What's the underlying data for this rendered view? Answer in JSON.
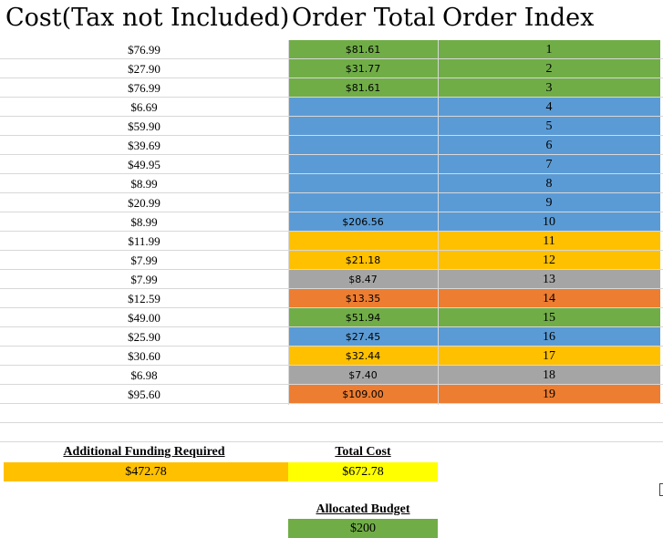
{
  "headers": {
    "cost": "Cost(Tax not Included)",
    "total": "Order Total",
    "index": "Order Index"
  },
  "colors": {
    "green": "#70ad47",
    "blue": "#5b9bd5",
    "gold": "#ffc000",
    "gray": "#a5a5a5",
    "orange": "#ed7d31",
    "yellow": "#ffff00"
  },
  "rows": [
    {
      "cost": "$76.99",
      "total": "$81.61",
      "index": "1",
      "color": "#70ad47"
    },
    {
      "cost": "$27.90",
      "total": "$31.77",
      "index": "2",
      "color": "#70ad47"
    },
    {
      "cost": "$76.99",
      "total": "$81.61",
      "index": "3",
      "color": "#70ad47"
    },
    {
      "cost": "$6.69",
      "total": "",
      "index": "4",
      "color": "#5b9bd5"
    },
    {
      "cost": "$59.90",
      "total": "",
      "index": "5",
      "color": "#5b9bd5"
    },
    {
      "cost": "$39.69",
      "total": "",
      "index": "6",
      "color": "#5b9bd5"
    },
    {
      "cost": "$49.95",
      "total": "",
      "index": "7",
      "color": "#5b9bd5"
    },
    {
      "cost": "$8.99",
      "total": "",
      "index": "8",
      "color": "#5b9bd5"
    },
    {
      "cost": "$20.99",
      "total": "",
      "index": "9",
      "color": "#5b9bd5"
    },
    {
      "cost": "$8.99",
      "total": "$206.56",
      "index": "10",
      "color": "#5b9bd5"
    },
    {
      "cost": "$11.99",
      "total": "",
      "index": "11",
      "color": "#ffc000"
    },
    {
      "cost": "$7.99",
      "total": "$21.18",
      "index": "12",
      "color": "#ffc000"
    },
    {
      "cost": "$7.99",
      "total": "$8.47",
      "index": "13",
      "color": "#a5a5a5"
    },
    {
      "cost": "$12.59",
      "total": "$13.35",
      "index": "14",
      "color": "#ed7d31"
    },
    {
      "cost": "$49.00",
      "total": "$51.94",
      "index": "15",
      "color": "#70ad47"
    },
    {
      "cost": "$25.90",
      "total": "$27.45",
      "index": "16",
      "color": "#5b9bd5"
    },
    {
      "cost": "$30.60",
      "total": "$32.44",
      "index": "17",
      "color": "#ffc000"
    },
    {
      "cost": "$6.98",
      "total": "$7.40",
      "index": "18",
      "color": "#a5a5a5"
    },
    {
      "cost": "$95.60",
      "total": "$109.00",
      "index": "19",
      "color": "#ed7d31"
    }
  ],
  "summary": {
    "additional_funding": {
      "label": "Additional Funding Required",
      "value": "$472.78",
      "color": "#ffc000"
    },
    "total_cost": {
      "label": "Total Cost",
      "value": "$672.78",
      "color": "#ffff00"
    },
    "allocated_budget": {
      "label": "Allocated Budget",
      "value": "$200",
      "color": "#70ad47"
    }
  }
}
